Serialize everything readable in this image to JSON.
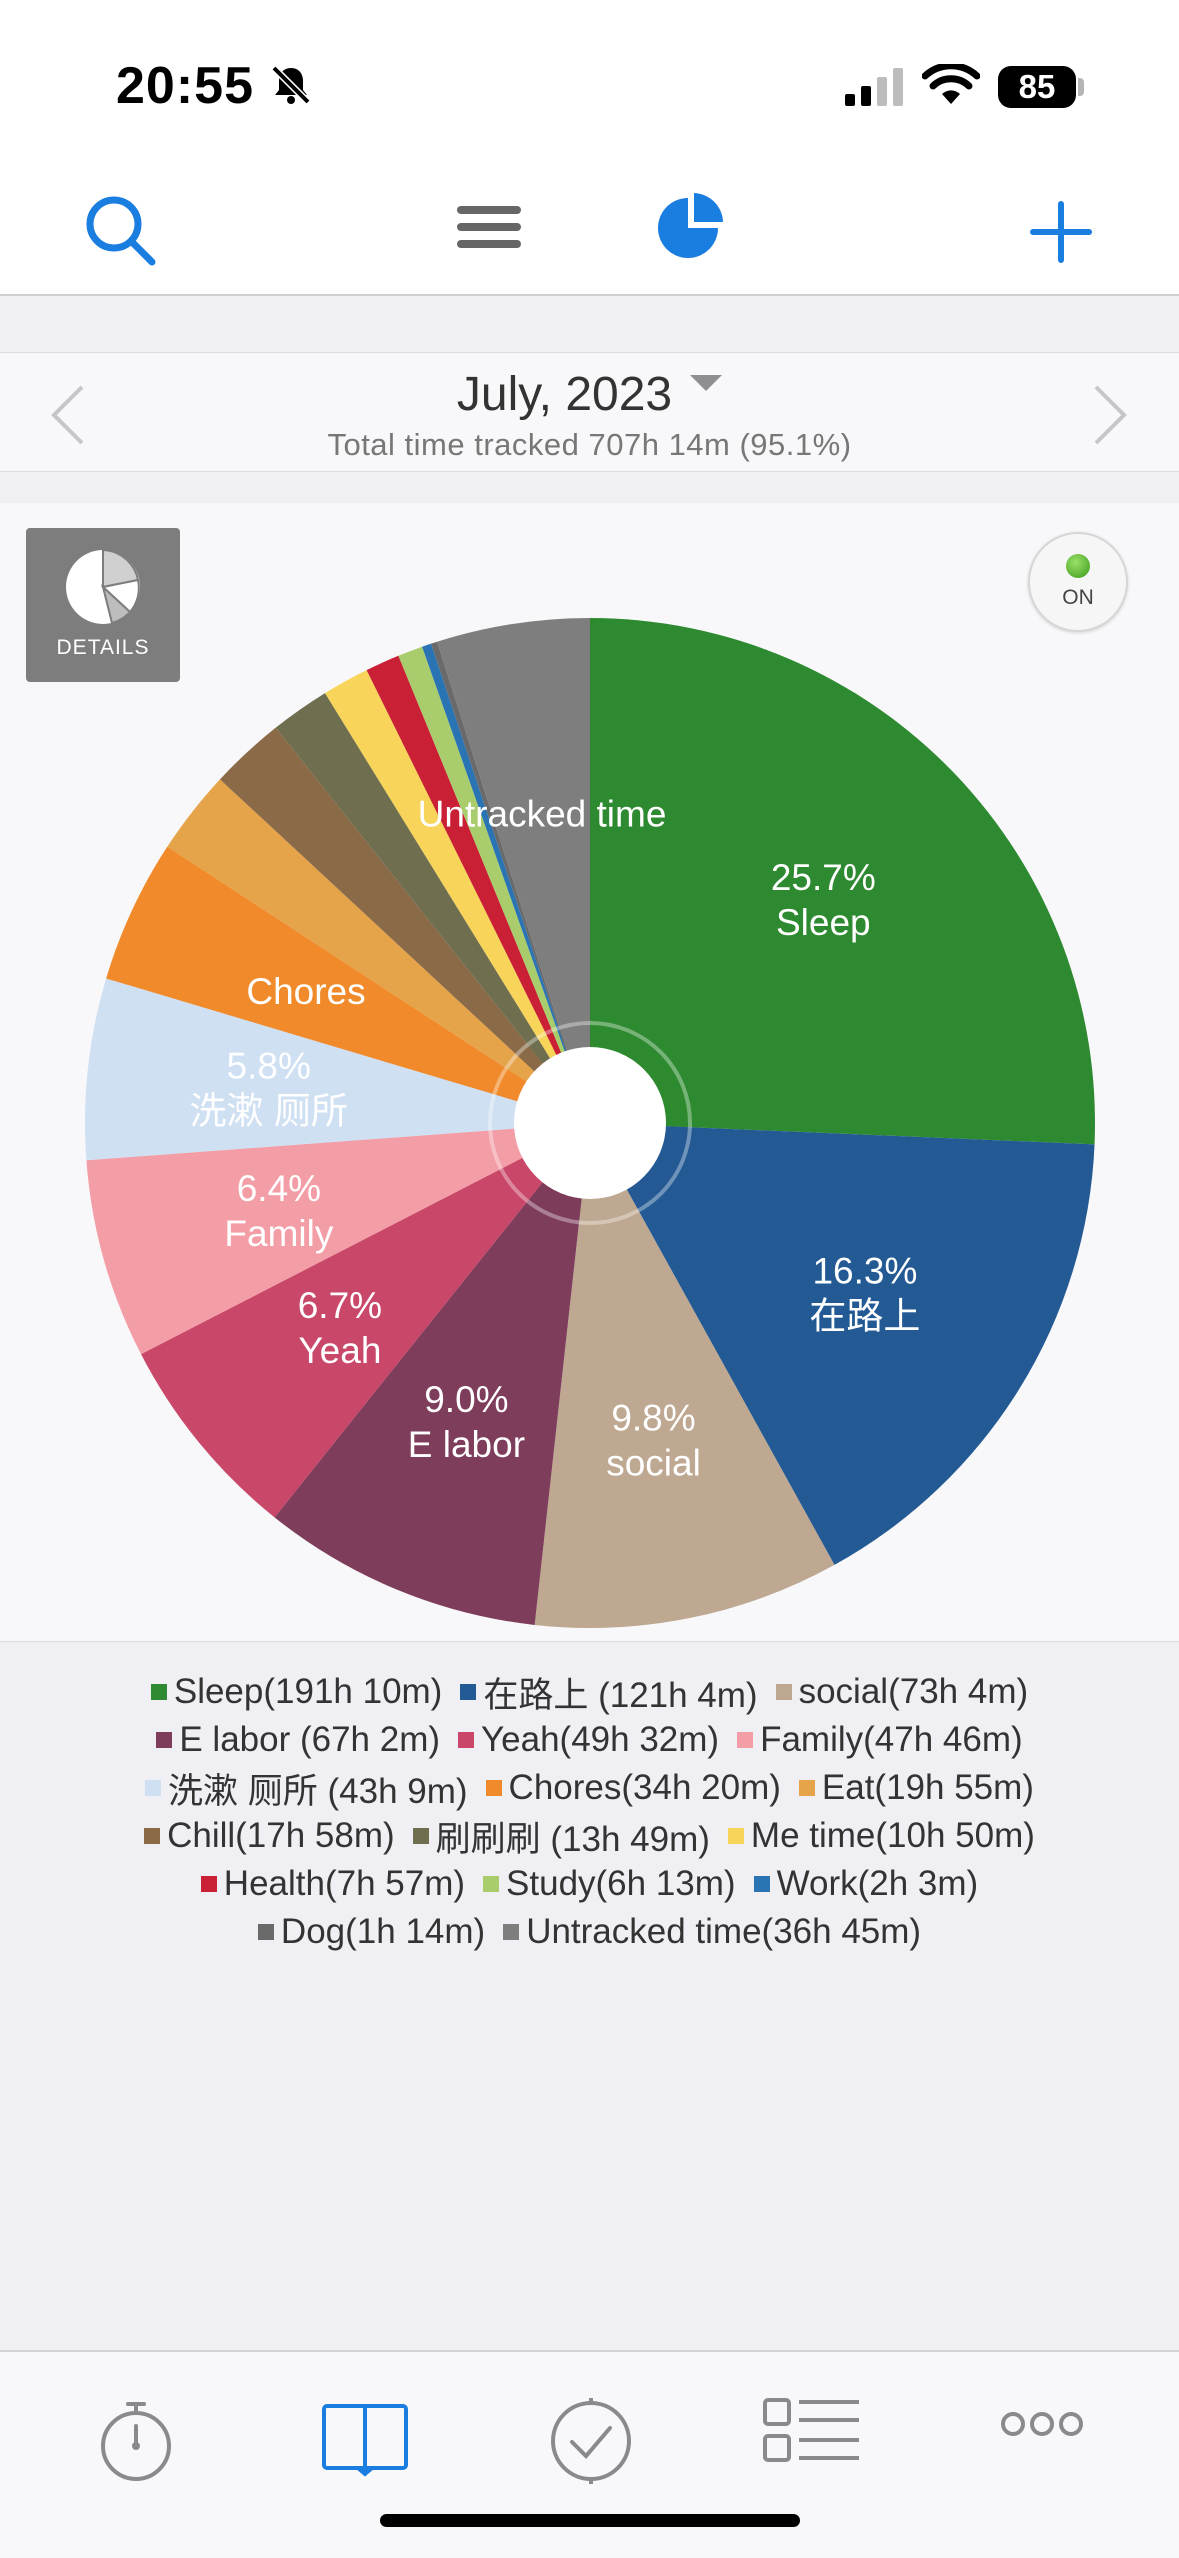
{
  "status_bar": {
    "time": "20:55",
    "battery": "85"
  },
  "month_header": {
    "title": "July, 2023",
    "subtitle": "Total time tracked 707h 14m (95.1%)"
  },
  "details_button": {
    "label": "DETAILS"
  },
  "toggle": {
    "label": "ON"
  },
  "chart_data": {
    "type": "pie",
    "start": "top, clockwise",
    "slices": [
      {
        "name": "Sleep",
        "legend": "Sleep(191h 10m)",
        "percent": 25.7,
        "color": "#2e8a30",
        "label_lines": [
          "25.7%",
          "Sleep"
        ]
      },
      {
        "name": "在路上",
        "legend": "在路上 (121h 4m)",
        "percent": 16.3,
        "color": "#245a94",
        "label_lines": [
          "16.3%",
          "在路上"
        ]
      },
      {
        "name": "social",
        "legend": "social(73h 4m)",
        "percent": 9.8,
        "color": "#bea891",
        "label_lines": [
          "9.8%",
          "social"
        ]
      },
      {
        "name": "E labor",
        "legend": "E labor (67h 2m)",
        "percent": 9.0,
        "color": "#7e3d5b",
        "label_lines": [
          "9.0%",
          "E labor"
        ]
      },
      {
        "name": "Yeah",
        "legend": "Yeah(49h 32m)",
        "percent": 6.7,
        "color": "#c9486a",
        "label_lines": [
          "6.7%",
          "Yeah"
        ]
      },
      {
        "name": "Family",
        "legend": "Family(47h 46m)",
        "percent": 6.4,
        "color": "#f39ea6",
        "label_lines": [
          "6.4%",
          "Family"
        ]
      },
      {
        "name": "洗漱 厕所",
        "legend": "洗漱 厕所 (43h 9m)",
        "percent": 5.8,
        "color": "#cfe0f3",
        "label_lines": [
          "5.8%",
          "洗漱 厕所"
        ]
      },
      {
        "name": "Chores",
        "legend": "Chores(34h 20m)",
        "percent": 4.6,
        "color": "#f08a2a",
        "label_lines": [
          "Chores"
        ]
      },
      {
        "name": "Eat",
        "legend": "Eat(19h 55m)",
        "percent": 2.7,
        "color": "#e6a44a",
        "label_lines": []
      },
      {
        "name": "Chill",
        "legend": "Chill(17h 58m)",
        "percent": 2.4,
        "color": "#8b6a47",
        "label_lines": []
      },
      {
        "name": "刷刷刷",
        "legend": "刷刷刷 (13h 49m)",
        "percent": 1.9,
        "color": "#6f6f50",
        "label_lines": []
      },
      {
        "name": "Me time",
        "legend": "Me time(10h 50m)",
        "percent": 1.5,
        "color": "#f8d45a",
        "label_lines": []
      },
      {
        "name": "Health",
        "legend": "Health(7h 57m)",
        "percent": 1.1,
        "color": "#c92035",
        "label_lines": []
      },
      {
        "name": "Study",
        "legend": "Study(6h 13m)",
        "percent": 0.8,
        "color": "#a9cd6c",
        "label_lines": []
      },
      {
        "name": "Work",
        "legend": "Work(2h 3m)",
        "percent": 0.3,
        "color": "#2b74b3",
        "label_lines": []
      },
      {
        "name": "Dog",
        "legend": "Dog(1h 14m)",
        "percent": 0.2,
        "color": "#6a6a6a",
        "label_lines": []
      },
      {
        "name": "Untracked time",
        "legend": "Untracked time(36h 45m)",
        "percent": 4.9,
        "color": "#7e7e7e",
        "label_lines": [
          "Untracked time"
        ]
      }
    ]
  },
  "legend_rows": [
    [
      0,
      1,
      2
    ],
    [
      3,
      4,
      5
    ],
    [
      6,
      7,
      8
    ],
    [
      9,
      10,
      11
    ],
    [
      12,
      13,
      14
    ],
    [
      15,
      16
    ]
  ]
}
